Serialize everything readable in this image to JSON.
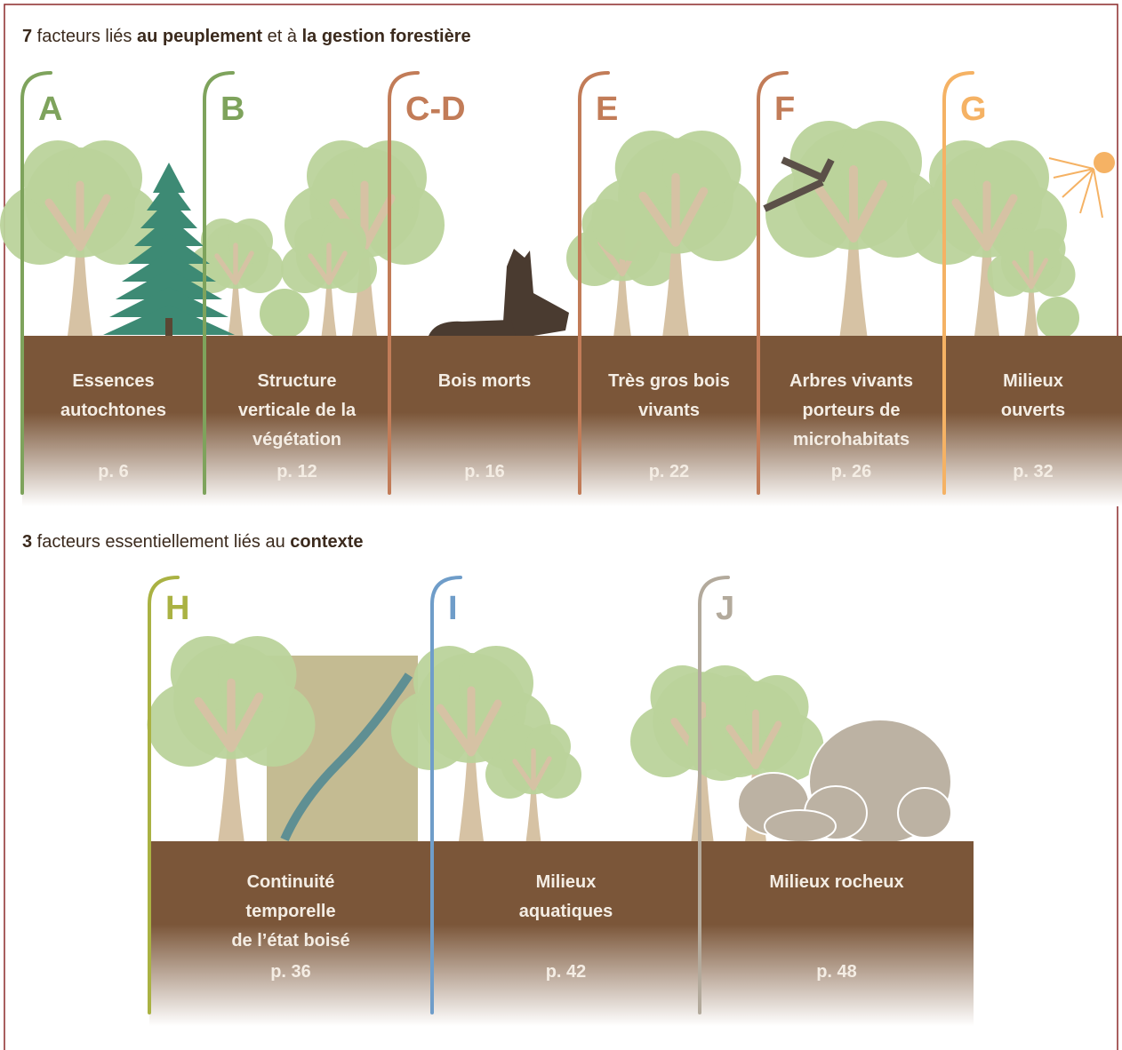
{
  "sections": [
    {
      "heading": [
        {
          "text": "7",
          "bold": true
        },
        {
          "text": " facteurs liés ",
          "bold": false
        },
        {
          "text": "au peuplement",
          "bold": true
        },
        {
          "text": " et à ",
          "bold": false
        },
        {
          "text": "la gestion forestière",
          "bold": true
        }
      ],
      "factors": [
        {
          "letter": "A",
          "color": "#7ea35c",
          "label": [
            "Essences",
            "autochtones"
          ],
          "page": "p. 6"
        },
        {
          "letter": "B",
          "color": "#7ea35c",
          "label": [
            "Structure",
            "verticale de la",
            "végétation"
          ],
          "page": "p. 12"
        },
        {
          "letter": "C-D",
          "color": "#c27c58",
          "label": [
            "Bois morts"
          ],
          "page": "p. 16"
        },
        {
          "letter": "E",
          "color": "#c27c58",
          "label": [
            "Très gros bois",
            "vivants"
          ],
          "page": "p. 22"
        },
        {
          "letter": "F",
          "color": "#c27c58",
          "label": [
            "Arbres vivants",
            "porteurs de",
            "microhabitats"
          ],
          "page": "p. 26"
        },
        {
          "letter": "G",
          "color": "#f5b264",
          "label": [
            "Milieux",
            "ouverts"
          ],
          "page": "p. 32"
        }
      ]
    },
    {
      "heading": [
        {
          "text": "3",
          "bold": true
        },
        {
          "text": " facteurs essentiellement liés au ",
          "bold": false
        },
        {
          "text": "contexte",
          "bold": true
        }
      ],
      "factors": [
        {
          "letter": "H",
          "color": "#aab243",
          "label": [
            "Continuité",
            "temporelle",
            "de l’état boisé"
          ],
          "page": "p. 36"
        },
        {
          "letter": "I",
          "color": "#6f9dc9",
          "label": [
            "Milieux",
            "aquatiques"
          ],
          "page": "p. 42"
        },
        {
          "letter": "J",
          "color": "#b3aa9c",
          "label": [
            "Milieux rocheux"
          ],
          "page": "p. 48"
        }
      ]
    }
  ]
}
